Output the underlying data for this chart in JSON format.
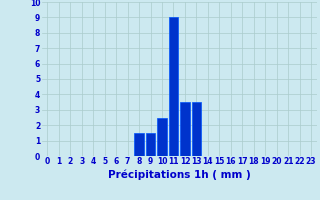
{
  "hours": [
    0,
    1,
    2,
    3,
    4,
    5,
    6,
    7,
    8,
    9,
    10,
    11,
    12,
    13,
    14,
    15,
    16,
    17,
    18,
    19,
    20,
    21,
    22,
    23
  ],
  "values": [
    0,
    0,
    0,
    0,
    0,
    0,
    0,
    0,
    1.5,
    1.5,
    2.5,
    9.0,
    3.5,
    3.5,
    0,
    0,
    0,
    0,
    0,
    0,
    0,
    0,
    0,
    0
  ],
  "bar_color": "#0033cc",
  "bar_edge_color": "#0055ff",
  "background_color": "#cce9f0",
  "grid_color": "#aacccc",
  "xlabel": "Précipitations 1h ( mm )",
  "xlabel_color": "#0000cc",
  "tick_color": "#0000cc",
  "ylim": [
    0,
    10
  ],
  "xlim": [
    -0.5,
    23.5
  ],
  "yticks": [
    0,
    1,
    2,
    3,
    4,
    5,
    6,
    7,
    8,
    9,
    10
  ],
  "xticks": [
    0,
    1,
    2,
    3,
    4,
    5,
    6,
    7,
    8,
    9,
    10,
    11,
    12,
    13,
    14,
    15,
    16,
    17,
    18,
    19,
    20,
    21,
    22,
    23
  ],
  "tick_fontsize": 5.5,
  "xlabel_fontsize": 7.5
}
